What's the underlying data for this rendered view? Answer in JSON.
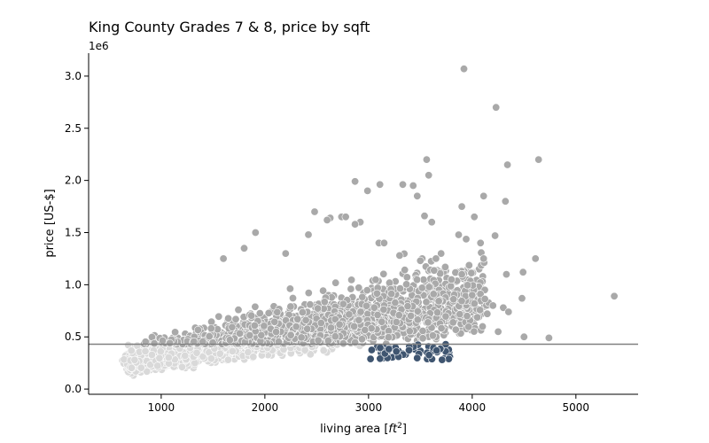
{
  "chart_data": {
    "type": "scatter",
    "title": "King County Grades 7 & 8, price by sqft",
    "xlabel": "living area [ft²]",
    "ylabel": "price [US-$]",
    "y_offset_label": "1e6",
    "xlim": [
      300,
      5600
    ],
    "ylim": [
      -50000,
      3220000
    ],
    "xticks": [
      1000,
      2000,
      3000,
      4000,
      5000
    ],
    "yticks": [
      0,
      500000,
      1000000,
      1500000,
      2000000,
      2500000,
      3000000
    ],
    "ytick_labels": [
      "0.0",
      "0.5",
      "1.0",
      "1.5",
      "2.0",
      "2.5",
      "3.0"
    ],
    "grid": false,
    "hline": {
      "y": 430000,
      "color": "#808080"
    },
    "colors": {
      "above": "#a9a9a9",
      "below": "#d9d9d9",
      "large_cheap": "#3f5570",
      "marker_edge": "#ffffff"
    },
    "series": [
      {
        "points": [
          [
            3920,
            3070000
          ],
          [
            4230,
            2700000
          ],
          [
            3560,
            2200000
          ],
          [
            4640,
            2200000
          ],
          [
            4340,
            2150000
          ],
          [
            3580,
            2050000
          ],
          [
            2870,
            1990000
          ],
          [
            3110,
            1960000
          ],
          [
            3330,
            1960000
          ],
          [
            3430,
            1950000
          ],
          [
            2990,
            1900000
          ],
          [
            3470,
            1850000
          ],
          [
            4110,
            1850000
          ],
          [
            3900,
            1750000
          ],
          [
            4320,
            1800000
          ],
          [
            2480,
            1700000
          ],
          [
            3540,
            1660000
          ],
          [
            4020,
            1650000
          ],
          [
            2740,
            1650000
          ],
          [
            2780,
            1650000
          ],
          [
            2630,
            1640000
          ],
          [
            2600,
            1620000
          ],
          [
            2920,
            1600000
          ],
          [
            2870,
            1580000
          ],
          [
            3610,
            1600000
          ],
          [
            4220,
            1470000
          ],
          [
            1910,
            1500000
          ],
          [
            2420,
            1480000
          ],
          [
            4080,
            1400000
          ],
          [
            3100,
            1400000
          ],
          [
            3150,
            1400000
          ],
          [
            4110,
            1250000
          ],
          [
            4610,
            1250000
          ],
          [
            4490,
            1120000
          ],
          [
            5370,
            890000
          ],
          [
            4330,
            1100000
          ],
          [
            3900,
            1100000
          ],
          [
            1600,
            1250000
          ],
          [
            1800,
            1350000
          ],
          [
            2200,
            1300000
          ],
          [
            3300,
            1280000
          ],
          [
            3700,
            1300000
          ],
          [
            3650,
            1250000
          ],
          [
            3500,
            1230000
          ],
          [
            3800,
            1050000
          ],
          [
            4000,
            900000
          ],
          [
            4200,
            800000
          ],
          [
            4300,
            780000
          ],
          [
            4480,
            870000
          ],
          [
            4740,
            490000
          ],
          [
            4500,
            500000
          ],
          [
            4350,
            740000
          ],
          [
            4250,
            550000
          ],
          [
            4100,
            600000
          ],
          [
            3950,
            700000
          ]
        ]
      }
    ],
    "note": "Cloud of several thousand points; above 430k drawn dark grey, below 430k light grey, and houses over ~3000 sqft below 430k drawn dark blue."
  }
}
